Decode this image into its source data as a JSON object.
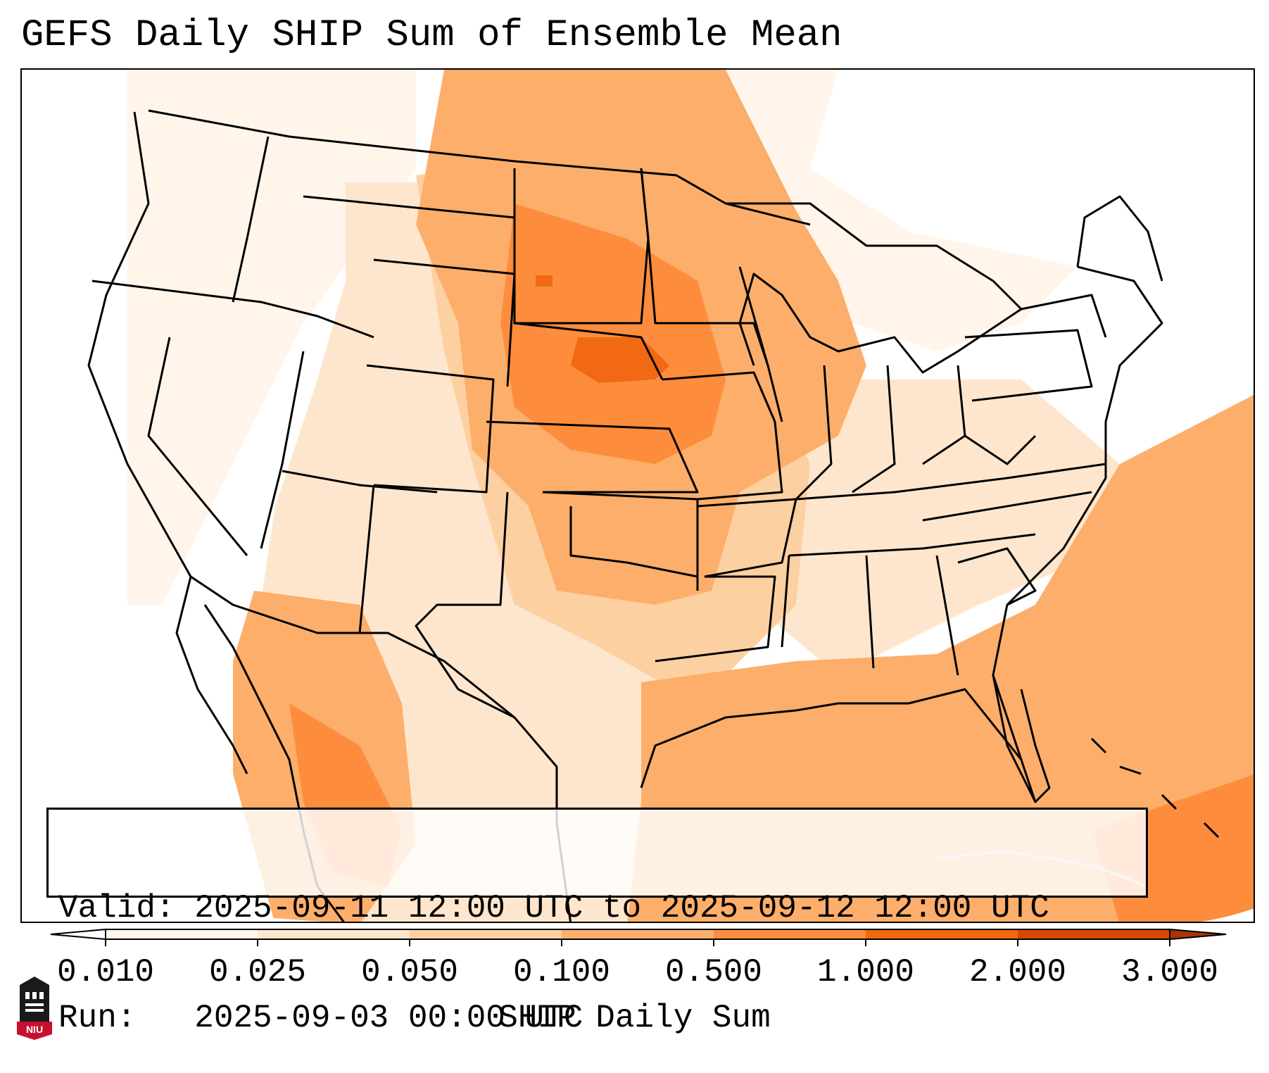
{
  "title": "GEFS Daily SHIP Sum of Ensemble Mean",
  "info": {
    "valid": "Valid: 2025-09-11 12:00 UTC to 2025-09-12 12:00 UTC",
    "run": "Run:   2025-09-03 00:00 UTC"
  },
  "colorbar": {
    "label": "SHIP Daily Sum",
    "ticks": [
      "0.010",
      "0.025",
      "0.050",
      "0.100",
      "0.500",
      "1.000",
      "2.000",
      "3.000"
    ],
    "colors": [
      "#fff5eb",
      "#fee6ce",
      "#fdd0a2",
      "#fdae6b",
      "#fd8d3c",
      "#f16913",
      "#d94801"
    ],
    "under_color": "#ffffff",
    "over_color": "#a63603"
  },
  "logo": {
    "text": "NIU",
    "color": "#c8102e"
  }
}
